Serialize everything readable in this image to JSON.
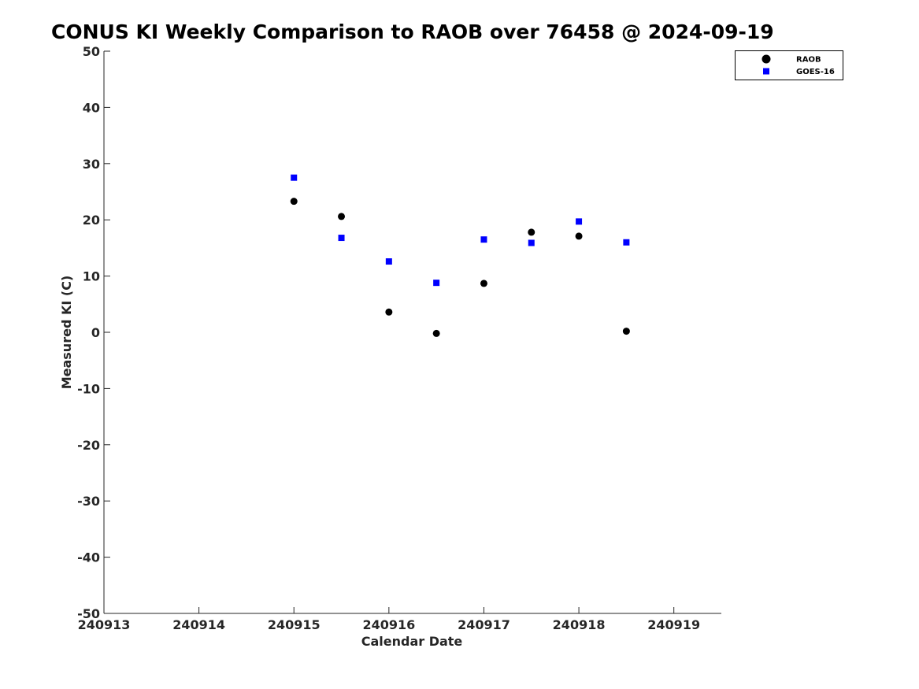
{
  "chart_data": {
    "type": "scatter",
    "title": "CONUS KI Weekly Comparison to RAOB over 76458 @ 2024-09-19",
    "xlabel": "Calendar Date",
    "ylabel": "Measured KI (C)",
    "xlim": [
      240913,
      240919.5
    ],
    "ylim": [
      -50,
      50
    ],
    "xticks": [
      240913,
      240914,
      240915,
      240916,
      240917,
      240918,
      240919
    ],
    "xtick_labels": [
      "240913",
      "240914",
      "240915",
      "240916",
      "240917",
      "240918",
      "240919"
    ],
    "yticks": [
      50,
      40,
      30,
      20,
      10,
      0,
      -10,
      -20,
      -30,
      -40,
      -50
    ],
    "ytick_labels": [
      "50",
      "40",
      "30",
      "20",
      "10",
      "0",
      "-10",
      "-20",
      "-30",
      "-40",
      "-50"
    ],
    "grid": false,
    "legend_position": "top-right",
    "series": [
      {
        "name": "RAOB",
        "marker": "circle",
        "color": "#000000",
        "x": [
          240915,
          240915.5,
          240916,
          240916.5,
          240917,
          240917.5,
          240918,
          240918.5
        ],
        "y": [
          23.3,
          20.6,
          3.6,
          -0.2,
          8.7,
          17.8,
          17.1,
          0.2
        ]
      },
      {
        "name": "GOES-16",
        "marker": "square",
        "color": "#0000ff",
        "x": [
          240915,
          240915.5,
          240916,
          240916.5,
          240917,
          240917.5,
          240918,
          240918.5
        ],
        "y": [
          27.5,
          16.8,
          12.6,
          8.8,
          16.5,
          15.9,
          19.7,
          16.0
        ]
      }
    ]
  }
}
